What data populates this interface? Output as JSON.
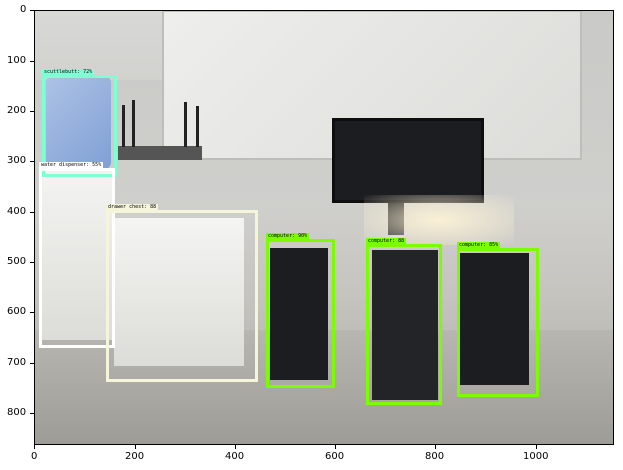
{
  "axes": {
    "x_ticks": [
      "0",
      "200",
      "400",
      "600",
      "800",
      "1000"
    ],
    "y_ticks": [
      "0",
      "100",
      "200",
      "300",
      "400",
      "500",
      "600",
      "700",
      "800"
    ]
  },
  "detections": [
    {
      "label": "scuttlebutt: 72%",
      "color": "#7fffd4"
    },
    {
      "label": "water dispenser: 55%",
      "color": "#ffffff"
    },
    {
      "label": "drawer chest: 88",
      "color": "#f5f5dc"
    },
    {
      "label": "computer: 90%",
      "color": "#7cfc00"
    },
    {
      "label": "computer: 88",
      "color": "#7cfc00"
    },
    {
      "label": "computer: 85%",
      "color": "#7cfc00"
    }
  ]
}
